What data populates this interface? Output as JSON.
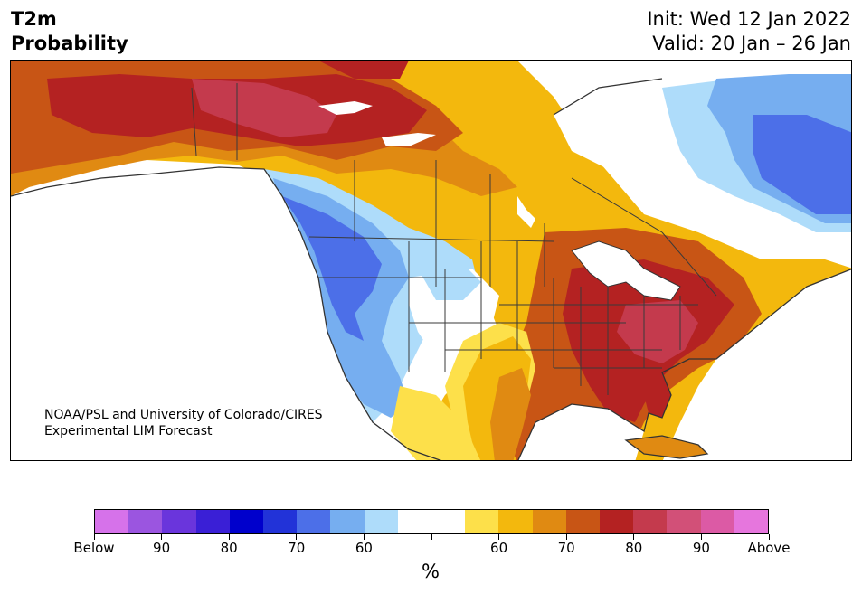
{
  "header": {
    "variable": "T2m",
    "subtitle": "Probability",
    "init": "Init: Wed 12 Jan 2022",
    "valid": "Valid: 20 Jan – 26 Jan"
  },
  "credit": {
    "line1": "NOAA/PSL and University of Colorado/CIRES",
    "line2": "Experimental LIM Forecast"
  },
  "colorbar": {
    "unit": "%",
    "colors": [
      "#d672ea",
      "#9b55e0",
      "#6a35dc",
      "#3a1fd6",
      "#0000cc",
      "#2233d8",
      "#4c6fe8",
      "#76aef0",
      "#aedcfa",
      "#ffffff",
      "#ffffff",
      "#fde04a",
      "#f3b80d",
      "#e08a12",
      "#c85515",
      "#b42222",
      "#c43a4d",
      "#d25078",
      "#dc5aa5",
      "#e676dd"
    ],
    "tick_labels": [
      "Below",
      "90",
      "80",
      "70",
      "60",
      "",
      "60",
      "70",
      "80",
      "90",
      "Above"
    ]
  },
  "legend_colors": {
    "below_strong": "#4c6fe8",
    "below_mid": "#76aef0",
    "below_weak": "#aedcfa",
    "neutral": "#ffffff",
    "above_weak": "#fde04a",
    "above_60": "#f3b80d",
    "above_70": "#e08a12",
    "above_75": "#c85515",
    "above_80": "#b42222",
    "above_85": "#c43a4d"
  }
}
